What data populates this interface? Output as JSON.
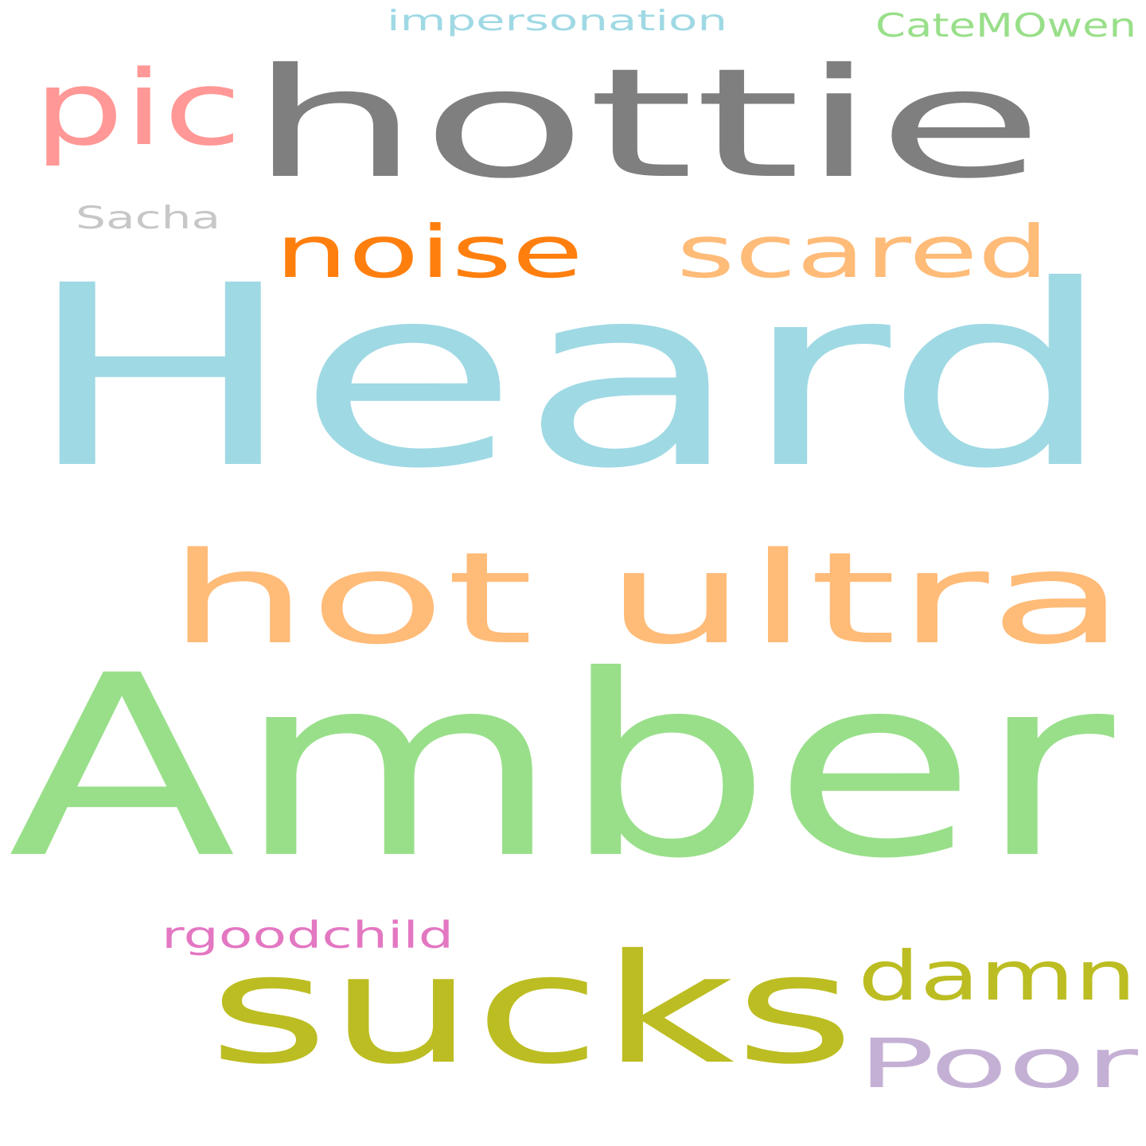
{
  "words": [
    {
      "text": "Heard",
      "color": "#9fd9e4"
    },
    {
      "text": "Amber",
      "color": "#99df8a"
    },
    {
      "text": "hottie",
      "color": "#7f7f7f"
    },
    {
      "text": "hot ultra",
      "color": "#ffbb78"
    },
    {
      "text": "sucks",
      "color": "#bcbd22"
    },
    {
      "text": "noise",
      "color": "#ff7f0e"
    },
    {
      "text": "scared",
      "color": "#ffbb78"
    },
    {
      "text": "pic",
      "color": "#ff9896"
    },
    {
      "text": "damn",
      "color": "#bcbd22"
    },
    {
      "text": "Poor",
      "color": "#c5b0d5"
    },
    {
      "text": "impersonation",
      "color": "#9fd9e4"
    },
    {
      "text": "CateMOwen",
      "color": "#99df8a"
    },
    {
      "text": "Sacha",
      "color": "#c7c7c7"
    },
    {
      "text": "rgoodchild",
      "color": "#e377c2"
    }
  ]
}
